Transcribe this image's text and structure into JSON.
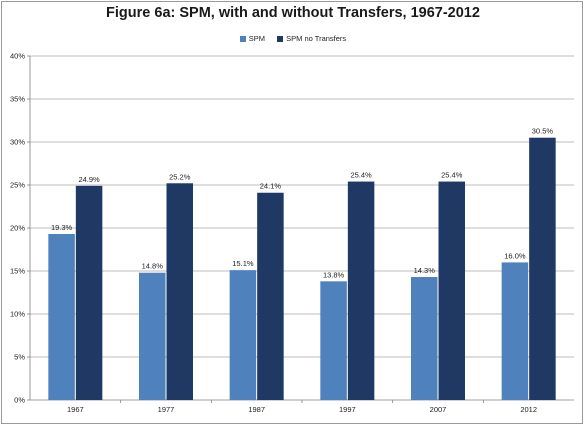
{
  "chart_data": {
    "type": "bar",
    "title": "Figure 6a: SPM, with and without Transfers, 1967-2012",
    "categories": [
      "1967",
      "1977",
      "1987",
      "1997",
      "2007",
      "2012"
    ],
    "series": [
      {
        "name": "SPM",
        "color": "#4f81bd",
        "values": [
          19.3,
          14.8,
          15.1,
          13.8,
          14.3,
          16.0
        ],
        "labels": [
          "19.3%",
          "14.8%",
          "15.1%",
          "13.8%",
          "14.3%",
          "16.0%"
        ]
      },
      {
        "name": "SPM no Transfers",
        "color": "#1f3864",
        "values": [
          24.9,
          25.2,
          24.1,
          25.4,
          25.4,
          30.5
        ],
        "labels": [
          "24.9%",
          "25.2%",
          "24.1%",
          "25.4%",
          "25.4%",
          "30.5%"
        ]
      }
    ],
    "ylim": [
      0,
      40
    ],
    "yticks": [
      0,
      5,
      10,
      15,
      20,
      25,
      30,
      35,
      40
    ],
    "ytick_labels": [
      "0%",
      "5%",
      "10%",
      "15%",
      "20%",
      "25%",
      "30%",
      "35%",
      "40%"
    ],
    "grid": true,
    "legend_position": "top-center"
  }
}
